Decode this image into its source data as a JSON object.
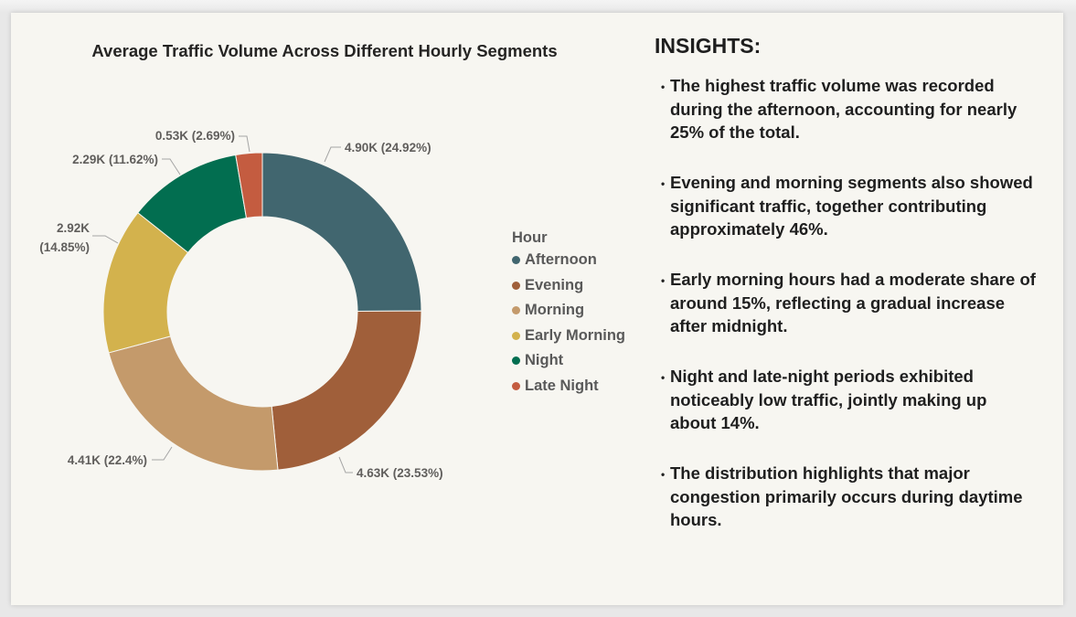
{
  "chart_data": {
    "type": "pie",
    "donut": true,
    "title": "Average Traffic Volume Across Different Hourly Segments",
    "legend_title": "Hour",
    "legend_position": "right",
    "categories": [
      "Afternoon",
      "Evening",
      "Morning",
      "Early Morning",
      "Night",
      "Late Night"
    ],
    "values": [
      4.9,
      4.63,
      4.41,
      2.92,
      2.29,
      0.53
    ],
    "percentages": [
      24.92,
      23.53,
      22.4,
      14.85,
      11.62,
      2.69
    ],
    "data_labels": [
      {
        "value": "4.90K",
        "percent": "(24.92%)"
      },
      {
        "value": "4.63K",
        "percent": "(23.53%)"
      },
      {
        "value": "4.41K",
        "percent": "(22.4%)"
      },
      {
        "value": "2.92K",
        "percent": "(14.85%)"
      },
      {
        "value": "2.29K",
        "percent": "(11.62%)"
      },
      {
        "value": "0.53K",
        "percent": "(2.69%)"
      }
    ],
    "colors": [
      "#41666f",
      "#a05f3a",
      "#c49a6b",
      "#d3b24d",
      "#026e50",
      "#c45c40"
    ]
  },
  "insights": {
    "heading": "INSIGHTS:",
    "bullet": "•",
    "items": [
      {
        "lines": [
          "The highest traffic volume was recorded",
          "during the afternoon, accounting for nearly",
          "25% of the total."
        ]
      },
      {
        "lines": [
          "Evening and morning segments also showed",
          "significant traffic, together contributing",
          "approximately 46%."
        ]
      },
      {
        "lines": [
          "Early morning hours had a moderate share of",
          "around 15%, reflecting a gradual increase",
          "after midnight."
        ]
      },
      {
        "lines": [
          "Night and late-night periods exhibited",
          "noticeably low traffic, jointly making up",
          "about 14%."
        ]
      },
      {
        "lines": [
          "The distribution highlights that major",
          "congestion primarily occurs during daytime",
          "hours."
        ]
      }
    ]
  }
}
